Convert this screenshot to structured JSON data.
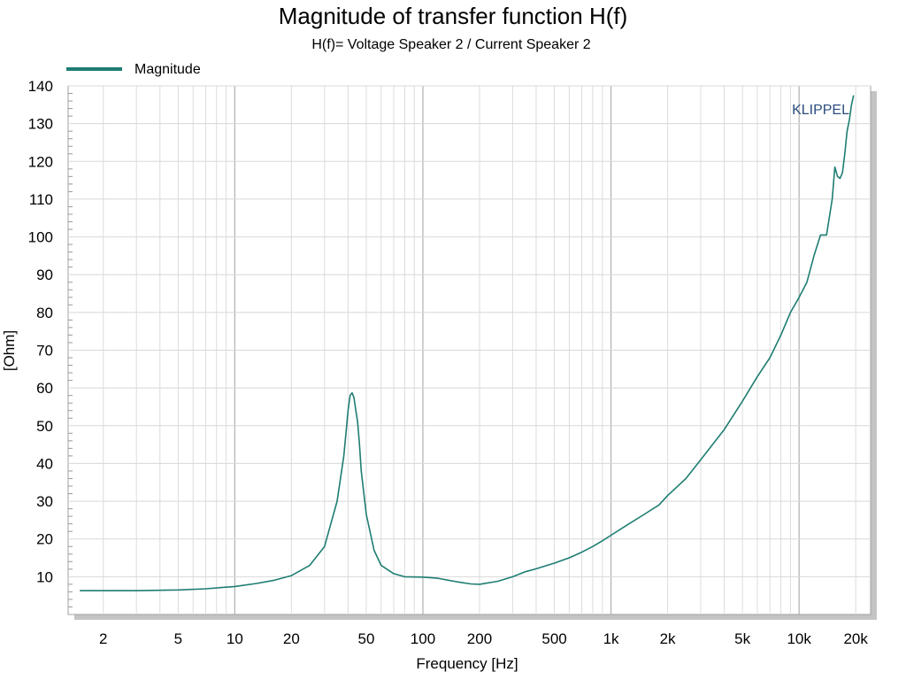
{
  "chart_data": {
    "type": "line",
    "title": "Magnitude of transfer function H(f)",
    "subtitle": "H(f)= Voltage Speaker 2 / Current Speaker 2",
    "xlabel": "Frequency [Hz]",
    "ylabel": "[Ohm]",
    "xscale": "log",
    "xlim": [
      1.3,
      24000
    ],
    "ylim": [
      0,
      140
    ],
    "grid": true,
    "legend_position": "top-left",
    "watermark": "KLIPPEL",
    "x_ticks": [
      {
        "value": 2,
        "label": "2"
      },
      {
        "value": 5,
        "label": "5"
      },
      {
        "value": 10,
        "label": "10"
      },
      {
        "value": 20,
        "label": "20"
      },
      {
        "value": 50,
        "label": "50"
      },
      {
        "value": 100,
        "label": "100"
      },
      {
        "value": 200,
        "label": "200"
      },
      {
        "value": 500,
        "label": "500"
      },
      {
        "value": 1000,
        "label": "1k"
      },
      {
        "value": 2000,
        "label": "2k"
      },
      {
        "value": 5000,
        "label": "5k"
      },
      {
        "value": 10000,
        "label": "10k"
      },
      {
        "value": 20000,
        "label": "20k"
      }
    ],
    "y_ticks": [
      {
        "value": 10,
        "label": "10"
      },
      {
        "value": 20,
        "label": "20"
      },
      {
        "value": 30,
        "label": "30"
      },
      {
        "value": 40,
        "label": "40"
      },
      {
        "value": 50,
        "label": "50"
      },
      {
        "value": 60,
        "label": "60"
      },
      {
        "value": 70,
        "label": "70"
      },
      {
        "value": 80,
        "label": "80"
      },
      {
        "value": 90,
        "label": "90"
      },
      {
        "value": 100,
        "label": "100"
      },
      {
        "value": 110,
        "label": "110"
      },
      {
        "value": 120,
        "label": "120"
      },
      {
        "value": 130,
        "label": "130"
      },
      {
        "value": 140,
        "label": "140"
      }
    ],
    "series": [
      {
        "name": "Magnitude",
        "color": "#1e7d72",
        "x": [
          1.5,
          2,
          3,
          5,
          7,
          10,
          13,
          16,
          20,
          25,
          30,
          35,
          38,
          40,
          41,
          42,
          43,
          44,
          45,
          46,
          47,
          50,
          55,
          60,
          70,
          80,
          100,
          120,
          150,
          180,
          200,
          250,
          300,
          350,
          400,
          500,
          600,
          700,
          800,
          900,
          1000,
          1200,
          1500,
          1800,
          2000,
          2500,
          3000,
          4000,
          5000,
          6000,
          7000,
          8000,
          9000,
          10000,
          11000,
          12000,
          13000,
          14000,
          15000,
          15500,
          16000,
          16500,
          17000,
          17500,
          18000,
          18500,
          19000,
          19500
        ],
        "values": [
          6.3,
          6.3,
          6.3,
          6.5,
          6.8,
          7.4,
          8.2,
          9.0,
          10.3,
          13.0,
          18.0,
          30.0,
          42.0,
          54.0,
          58.0,
          58.7,
          57.5,
          54.0,
          51.0,
          45.0,
          38.0,
          26.5,
          17.0,
          13.0,
          10.8,
          10.0,
          9.9,
          9.6,
          8.7,
          8.1,
          8.0,
          8.8,
          10.0,
          11.3,
          12.1,
          13.6,
          15.0,
          16.5,
          18.0,
          19.5,
          21.0,
          23.5,
          26.5,
          29.0,
          31.5,
          36.0,
          41.0,
          49.0,
          56.5,
          63.0,
          68.0,
          74.0,
          80.0,
          84.0,
          88.0,
          95.0,
          100.5,
          100.5,
          110.0,
          118.5,
          116.0,
          115.5,
          117.0,
          122.0,
          128.0,
          131.0,
          135.0,
          137.5
        ]
      }
    ]
  }
}
